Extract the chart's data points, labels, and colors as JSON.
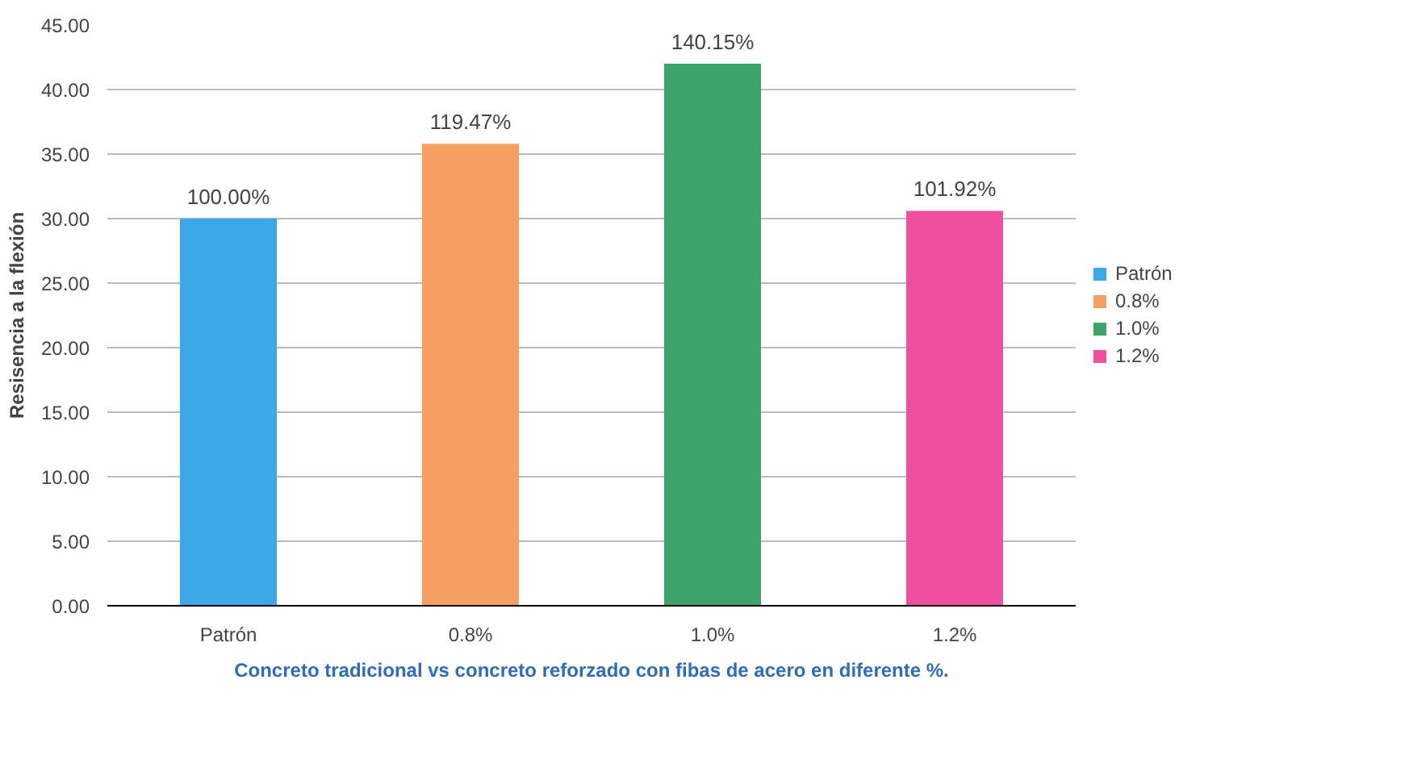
{
  "chart_data": {
    "type": "bar",
    "xlabel": "Concreto tradicional vs concreto reforzado con fibas de acero en diferente %.",
    "ylabel": "Resisencia a la flexión",
    "categories": [
      "Patrón",
      "0.8%",
      "1.0%",
      "1.2%"
    ],
    "series": [
      {
        "name": "Patrón",
        "color": "#3ba9e8",
        "values": [
          30.0,
          null,
          null,
          null
        ]
      },
      {
        "name": "0.8%",
        "color": "#f5a062",
        "values": [
          null,
          35.8,
          null,
          null
        ]
      },
      {
        "name": "1.0%",
        "color": "#3da56a",
        "values": [
          null,
          null,
          42.0,
          null
        ]
      },
      {
        "name": "1.2%",
        "color": "#ef4f9e",
        "values": [
          null,
          null,
          null,
          30.6
        ]
      }
    ],
    "annotations": [
      {
        "text": "100.00%",
        "x": "Patrón",
        "y": 30.0
      },
      {
        "text": "119.47%",
        "x": "0.8%",
        "y": 35.8
      },
      {
        "text": "140.15%",
        "x": "1.0%",
        "y": 42.0
      },
      {
        "text": "101.92%",
        "x": "1.2%",
        "y": 30.6
      }
    ],
    "ylim": [
      0,
      45
    ],
    "yticks": [
      {
        "value": 0,
        "label": "0.00"
      },
      {
        "value": 5,
        "label": "5.00"
      },
      {
        "value": 10,
        "label": "10.00"
      },
      {
        "value": 15,
        "label": "15.00"
      },
      {
        "value": 20,
        "label": "20.00"
      },
      {
        "value": 25,
        "label": "25.00"
      },
      {
        "value": 30,
        "label": "30.00"
      },
      {
        "value": 35,
        "label": "35.00"
      },
      {
        "value": 40,
        "label": "40.00"
      },
      {
        "value": 45,
        "label": "45.00"
      }
    ],
    "grid": "y",
    "legend": "right"
  }
}
